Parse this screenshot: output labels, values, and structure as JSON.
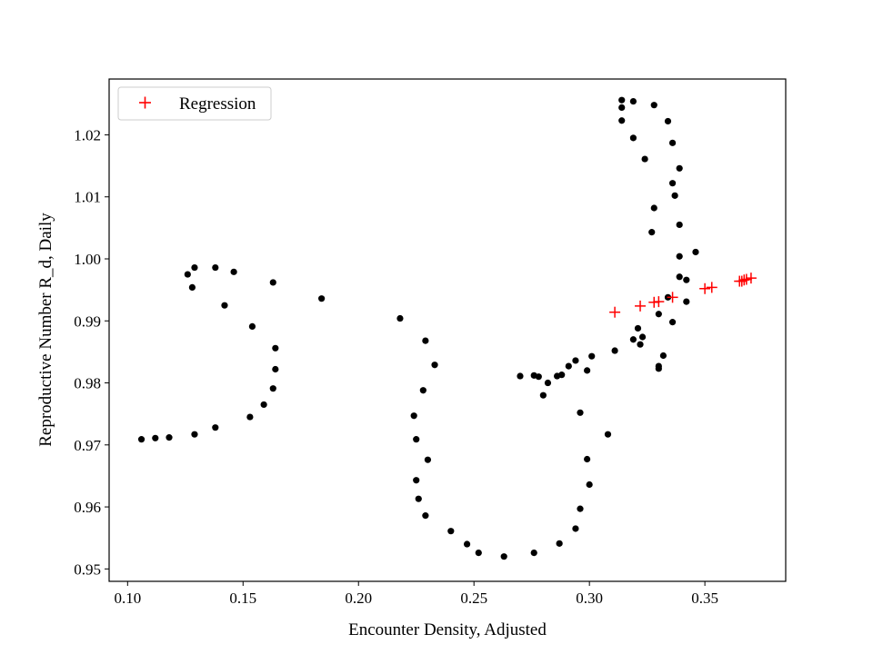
{
  "chart_data": {
    "type": "scatter",
    "title": "",
    "xlabel": "Encounter Density, Adjusted",
    "ylabel": "Reproductive Number R_d, Daily",
    "xlim": [
      0.092,
      0.385
    ],
    "ylim": [
      0.948,
      1.029
    ],
    "xticks": [
      "0.10",
      "0.15",
      "0.20",
      "0.25",
      "0.30",
      "0.35"
    ],
    "yticks": [
      "0.95",
      "0.96",
      "0.97",
      "0.98",
      "0.99",
      "1.00",
      "1.01",
      "1.02"
    ],
    "grid": false,
    "legend_position": "upper-left",
    "legend": [
      "Regression"
    ],
    "series": [
      {
        "marker": "circle",
        "color": "#000000",
        "points": [
          [
            0.106,
            0.9709
          ],
          [
            0.112,
            0.9711
          ],
          [
            0.118,
            0.9712
          ],
          [
            0.129,
            0.9717
          ],
          [
            0.138,
            0.9728
          ],
          [
            0.153,
            0.9745
          ],
          [
            0.159,
            0.9765
          ],
          [
            0.163,
            0.9791
          ],
          [
            0.164,
            0.9822
          ],
          [
            0.164,
            0.9856
          ],
          [
            0.154,
            0.9891
          ],
          [
            0.142,
            0.9925
          ],
          [
            0.128,
            0.9954
          ],
          [
            0.126,
            0.9975
          ],
          [
            0.129,
            0.9986
          ],
          [
            0.138,
            0.9986
          ],
          [
            0.146,
            0.9979
          ],
          [
            0.163,
            0.9962
          ],
          [
            0.184,
            0.9936
          ],
          [
            0.218,
            0.9904
          ],
          [
            0.229,
            0.9868
          ],
          [
            0.233,
            0.9829
          ],
          [
            0.228,
            0.9788
          ],
          [
            0.224,
            0.9747
          ],
          [
            0.225,
            0.9709
          ],
          [
            0.23,
            0.9676
          ],
          [
            0.225,
            0.9643
          ],
          [
            0.226,
            0.9613
          ],
          [
            0.229,
            0.9586
          ],
          [
            0.24,
            0.9561
          ],
          [
            0.247,
            0.954
          ],
          [
            0.252,
            0.9526
          ],
          [
            0.263,
            0.952
          ],
          [
            0.276,
            0.9526
          ],
          [
            0.287,
            0.9541
          ],
          [
            0.294,
            0.9565
          ],
          [
            0.296,
            0.9597
          ],
          [
            0.3,
            0.9636
          ],
          [
            0.299,
            0.9677
          ],
          [
            0.296,
            0.9752
          ],
          [
            0.299,
            0.982
          ],
          [
            0.294,
            0.9836
          ],
          [
            0.288,
            0.9813
          ],
          [
            0.286,
            0.9811
          ],
          [
            0.282,
            0.98
          ],
          [
            0.28,
            0.978
          ],
          [
            0.278,
            0.981
          ],
          [
            0.276,
            0.9812
          ],
          [
            0.27,
            0.9811
          ],
          [
            0.291,
            0.9827
          ],
          [
            0.301,
            0.9843
          ],
          [
            0.308,
            0.9717
          ],
          [
            0.311,
            0.9852
          ],
          [
            0.319,
            0.987
          ],
          [
            0.322,
            0.9862
          ],
          [
            0.323,
            0.9874
          ],
          [
            0.321,
            0.9888
          ],
          [
            0.33,
            0.9911
          ],
          [
            0.33,
            0.9823
          ],
          [
            0.33,
            0.9827
          ],
          [
            0.332,
            0.9844
          ],
          [
            0.334,
            0.9938
          ],
          [
            0.336,
            0.9898
          ],
          [
            0.339,
            0.9971
          ],
          [
            0.342,
            0.9966
          ],
          [
            0.342,
            0.9931
          ],
          [
            0.346,
            1.0011
          ],
          [
            0.339,
            1.0004
          ],
          [
            0.339,
            1.0055
          ],
          [
            0.337,
            1.0102
          ],
          [
            0.336,
            1.0122
          ],
          [
            0.339,
            1.0146
          ],
          [
            0.336,
            1.0187
          ],
          [
            0.334,
            1.0222
          ],
          [
            0.328,
            1.0248
          ],
          [
            0.319,
            1.0254
          ],
          [
            0.314,
            1.0256
          ],
          [
            0.314,
            1.0244
          ],
          [
            0.314,
            1.0223
          ],
          [
            0.319,
            1.0195
          ],
          [
            0.324,
            1.0161
          ],
          [
            0.328,
            1.0082
          ],
          [
            0.327,
            1.0043
          ]
        ]
      },
      {
        "name": "Regression",
        "marker": "plus",
        "color": "#ff0000",
        "points": [
          [
            0.311,
            0.9914
          ],
          [
            0.322,
            0.9924
          ],
          [
            0.328,
            0.993
          ],
          [
            0.33,
            0.9931
          ],
          [
            0.336,
            0.9938
          ],
          [
            0.35,
            0.9952
          ],
          [
            0.353,
            0.9954
          ],
          [
            0.365,
            0.9964
          ],
          [
            0.366,
            0.9964
          ],
          [
            0.367,
            0.9966
          ],
          [
            0.368,
            0.9967
          ],
          [
            0.37,
            0.9969
          ]
        ]
      }
    ]
  }
}
